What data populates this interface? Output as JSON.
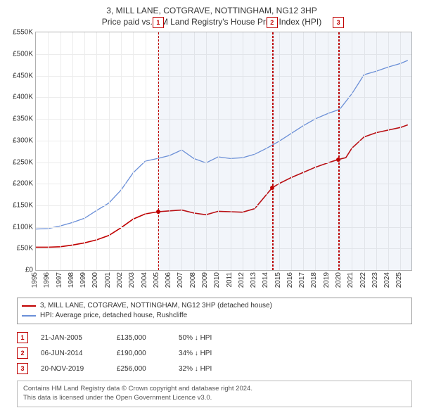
{
  "title": {
    "line1": "3, MILL LANE, COTGRAVE, NOTTINGHAM, NG12 3HP",
    "line2": "Price paid vs. HM Land Registry's House Price Index (HPI)",
    "fontsize": 12
  },
  "chart": {
    "type": "line",
    "background_color": "#ffffff",
    "grid_color": "#ececec",
    "axis_color": "#b0b0b0",
    "ylim": [
      0,
      550000
    ],
    "ytick_step": 50000,
    "ytick_labels": [
      "£0",
      "£50K",
      "£100K",
      "£150K",
      "£200K",
      "£250K",
      "£300K",
      "£350K",
      "£400K",
      "£450K",
      "£500K",
      "£550K"
    ],
    "xlim": [
      1995,
      2025.9
    ],
    "xticks": [
      1995,
      1996,
      1997,
      1998,
      1999,
      2000,
      2001,
      2002,
      2003,
      2004,
      2005,
      2006,
      2007,
      2008,
      2009,
      2010,
      2011,
      2012,
      2013,
      2014,
      2015,
      2016,
      2017,
      2018,
      2019,
      2020,
      2021,
      2022,
      2023,
      2024,
      2025
    ],
    "label_fontsize": 10,
    "series": [
      {
        "name": "price_paid",
        "color": "#c00000",
        "line_width": 1.6,
        "data": [
          [
            1995.0,
            53000
          ],
          [
            1996.0,
            53000
          ],
          [
            1997.0,
            54000
          ],
          [
            1998.0,
            58000
          ],
          [
            1999.0,
            63000
          ],
          [
            2000.0,
            70000
          ],
          [
            2001.0,
            80000
          ],
          [
            2002.0,
            98000
          ],
          [
            2003.0,
            118000
          ],
          [
            2004.0,
            130000
          ],
          [
            2005.06,
            135000
          ],
          [
            2006.0,
            137000
          ],
          [
            2007.0,
            139000
          ],
          [
            2008.0,
            132000
          ],
          [
            2009.0,
            128000
          ],
          [
            2010.0,
            136000
          ],
          [
            2011.0,
            135000
          ],
          [
            2012.0,
            134000
          ],
          [
            2013.0,
            142000
          ],
          [
            2014.43,
            190000
          ],
          [
            2015.0,
            200000
          ],
          [
            2016.0,
            214000
          ],
          [
            2017.0,
            226000
          ],
          [
            2018.0,
            238000
          ],
          [
            2019.0,
            248000
          ],
          [
            2019.89,
            256000
          ],
          [
            2020.5,
            260000
          ],
          [
            2021.0,
            282000
          ],
          [
            2022.0,
            308000
          ],
          [
            2023.0,
            318000
          ],
          [
            2024.0,
            324000
          ],
          [
            2025.0,
            330000
          ],
          [
            2025.6,
            336000
          ]
        ]
      },
      {
        "name": "hpi",
        "color": "#6a8fd8",
        "line_width": 1.3,
        "data": [
          [
            1995.0,
            95000
          ],
          [
            1996.0,
            96000
          ],
          [
            1997.0,
            102000
          ],
          [
            1998.0,
            110000
          ],
          [
            1999.0,
            120000
          ],
          [
            2000.0,
            138000
          ],
          [
            2001.0,
            155000
          ],
          [
            2002.0,
            185000
          ],
          [
            2003.0,
            225000
          ],
          [
            2004.0,
            252000
          ],
          [
            2005.0,
            258000
          ],
          [
            2006.0,
            265000
          ],
          [
            2007.0,
            278000
          ],
          [
            2008.0,
            258000
          ],
          [
            2009.0,
            248000
          ],
          [
            2010.0,
            262000
          ],
          [
            2011.0,
            258000
          ],
          [
            2012.0,
            260000
          ],
          [
            2013.0,
            268000
          ],
          [
            2014.0,
            282000
          ],
          [
            2015.0,
            298000
          ],
          [
            2016.0,
            316000
          ],
          [
            2017.0,
            334000
          ],
          [
            2018.0,
            350000
          ],
          [
            2019.0,
            362000
          ],
          [
            2020.0,
            372000
          ],
          [
            2021.0,
            408000
          ],
          [
            2022.0,
            452000
          ],
          [
            2023.0,
            460000
          ],
          [
            2024.0,
            470000
          ],
          [
            2025.0,
            478000
          ],
          [
            2025.6,
            485000
          ]
        ]
      }
    ],
    "sale_markers": [
      {
        "num": "1",
        "x": 2005.06,
        "y": 135000,
        "color": "#c00000"
      },
      {
        "num": "2",
        "x": 2014.43,
        "y": 190000,
        "color": "#c00000"
      },
      {
        "num": "3",
        "x": 2019.89,
        "y": 256000,
        "color": "#c00000"
      }
    ],
    "bands": [
      {
        "from": 2005.06,
        "to": 2014.43,
        "marker": "1"
      },
      {
        "from": 2014.43,
        "to": 2019.89,
        "marker": "2"
      },
      {
        "from": 2019.89,
        "to": 2025.9,
        "marker": "3",
        "current": true
      }
    ],
    "band_fill": "rgba(130,160,210,0.10)",
    "band_border": "#c00000"
  },
  "legend": {
    "items": [
      {
        "color": "#c00000",
        "label": "3, MILL LANE, COTGRAVE, NOTTINGHAM, NG12 3HP (detached house)"
      },
      {
        "color": "#6a8fd8",
        "label": "HPI: Average price, detached house, Rushcliffe"
      }
    ]
  },
  "transactions": [
    {
      "num": "1",
      "date": "21-JAN-2005",
      "price": "£135,000",
      "diff": "50% ↓ HPI"
    },
    {
      "num": "2",
      "date": "06-JUN-2014",
      "price": "£190,000",
      "diff": "34% ↓ HPI"
    },
    {
      "num": "3",
      "date": "20-NOV-2019",
      "price": "£256,000",
      "diff": "32% ↓ HPI"
    }
  ],
  "footer": {
    "line1": "Contains HM Land Registry data © Crown copyright and database right 2024.",
    "line2": "This data is licensed under the Open Government Licence v3.0."
  }
}
